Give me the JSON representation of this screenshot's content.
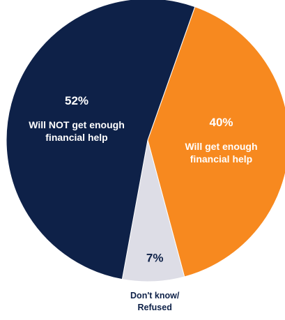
{
  "chart_data": {
    "type": "pie",
    "slices": [
      {
        "label_lines": [
          "Will get enough",
          "financial help"
        ],
        "value": 40,
        "value_label": "40%",
        "color": "#F7891F",
        "label_color": "#FFFFFF",
        "label_inside": true
      },
      {
        "label_lines": [
          "Don't know/",
          "Refused"
        ],
        "value": 7,
        "value_label": "7%",
        "color": "#DDDDE6",
        "label_color": "#0E2148",
        "label_inside": false
      },
      {
        "label_lines": [
          "Will NOT get enough",
          "financial help"
        ],
        "value": 52,
        "value_label": "52%",
        "color": "#0E2148",
        "label_color": "#FFFFFF",
        "label_inside": true
      }
    ]
  }
}
